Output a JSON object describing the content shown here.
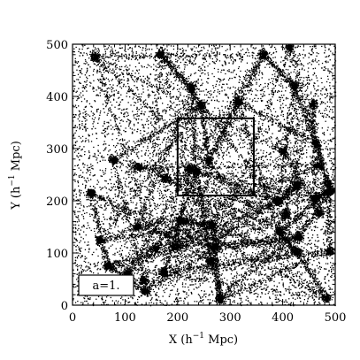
{
  "chart_data": {
    "type": "scatter",
    "xlabel_main": "X (h",
    "xlabel_sup": "−1",
    "xlabel_unit": " Mpc)",
    "ylabel_main": "Y (h",
    "ylabel_sup": "−1",
    "ylabel_unit": " Mpc)",
    "xlim": [
      0,
      500
    ],
    "ylim": [
      0,
      500
    ],
    "xticks": [
      0,
      100,
      200,
      300,
      400,
      500
    ],
    "yticks": [
      0,
      100,
      200,
      300,
      400,
      500
    ],
    "xtick_labels": [
      "0",
      "100",
      "200",
      "300",
      "400",
      "500"
    ],
    "ytick_labels": [
      "0",
      "100",
      "200",
      "300",
      "400",
      "500"
    ],
    "grid": false,
    "marker_color": "#000000",
    "annotation": "a=1.",
    "subregion_box": {
      "x": [
        200,
        345
      ],
      "y": [
        210,
        358
      ]
    }
  }
}
